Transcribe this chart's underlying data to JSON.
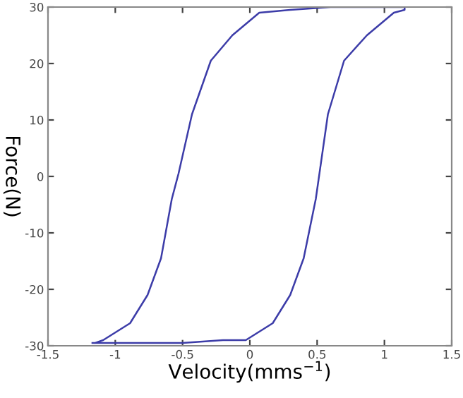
{
  "chart_data": {
    "type": "line",
    "xlabel": "Velocity(mms$^{−1}$)",
    "ylabel": "Force(N)",
    "series": [
      {
        "color": "#3c3ca8",
        "x": [
          -1.17,
          -0.9,
          -0.5,
          -0.2,
          -0.03,
          0.17,
          0.3,
          0.4,
          0.49,
          0.58,
          0.7,
          0.87,
          1.07,
          1.15,
          1.15,
          0.6,
          0.3,
          0.07,
          -0.13,
          -0.29,
          -0.43,
          -0.53,
          -0.58,
          -0.66,
          -0.76,
          -0.89,
          -1.09,
          -1.15
        ],
        "values": [
          -29.5,
          -29.5,
          -29.5,
          -29,
          -29,
          -26,
          -21,
          -14.5,
          -4,
          11,
          20.5,
          25,
          29,
          29.5,
          30,
          30,
          29.5,
          29,
          25,
          20.5,
          11,
          0.5,
          -4,
          -14.5,
          -21,
          -26,
          -29,
          -29.5
        ]
      }
    ],
    "xlim": [
      -1.5,
      1.5
    ],
    "ylim": [
      -30,
      30
    ],
    "xticks": [
      -1.5,
      -1,
      -0.5,
      0,
      0.5,
      1,
      1.5
    ],
    "yticks": [
      -30,
      -20,
      -10,
      0,
      10,
      20,
      30
    ],
    "grid": false
  }
}
